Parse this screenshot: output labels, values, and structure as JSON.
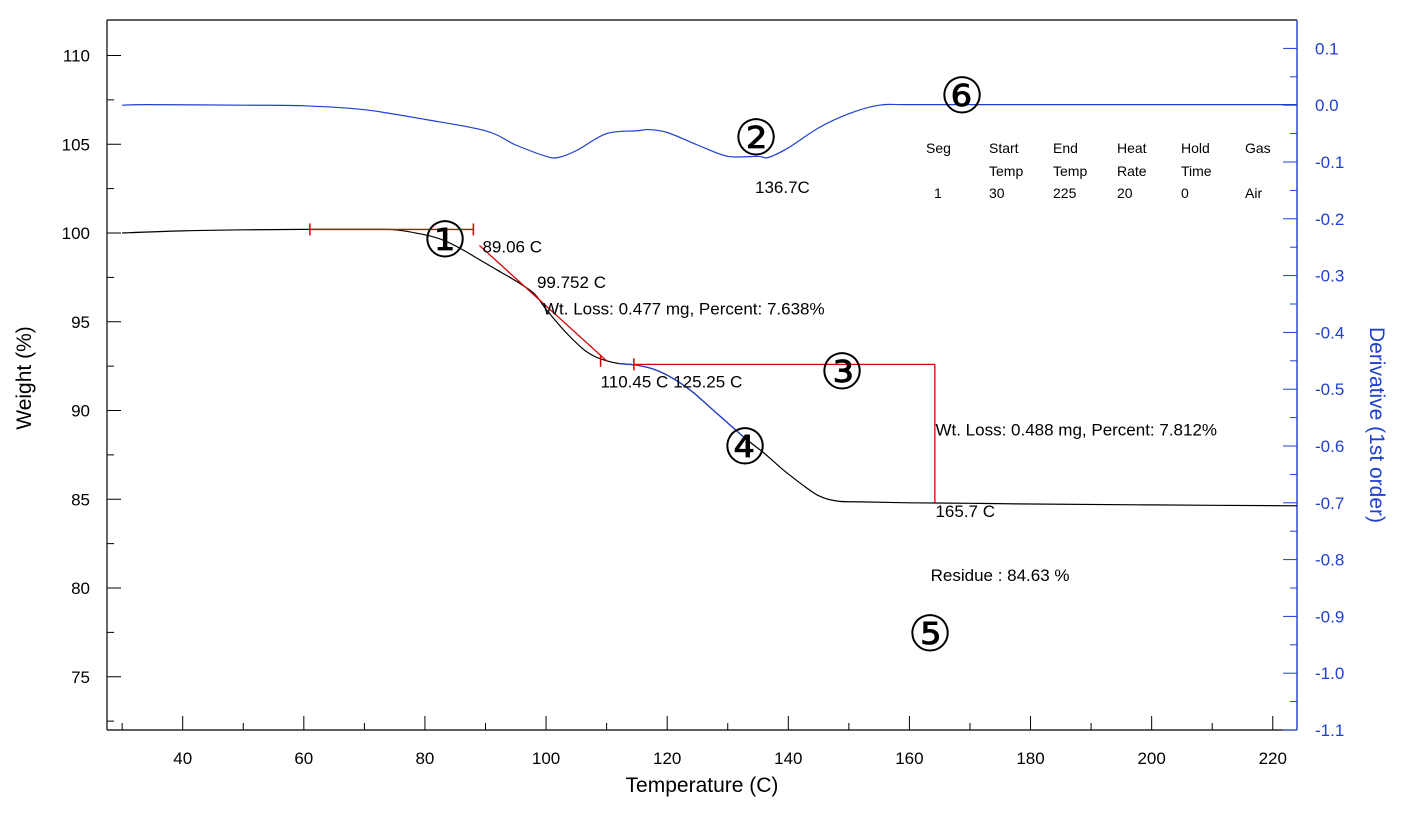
{
  "chart_data": {
    "type": "line",
    "xlabel": "Temperature (C)",
    "ylabel": "Weight (%)",
    "y2label": "Derivative (1st order)",
    "xlim": [
      27.5,
      224
    ],
    "ylim": [
      72,
      112
    ],
    "y2lim": [
      -1.1,
      0.15
    ],
    "x_ticks": [
      40,
      60,
      80,
      100,
      120,
      140,
      160,
      180,
      200,
      220
    ],
    "y_ticks": [
      75,
      80,
      85,
      90,
      95,
      100,
      105,
      110
    ],
    "y2_ticks": [
      0.1,
      0.0,
      -0.1,
      -0.2,
      -0.3,
      -0.4,
      -0.5,
      -0.6,
      -0.7,
      -0.8,
      -0.9,
      -1.0,
      -1.1
    ],
    "y2_tick_labels": [
      "0.1",
      "0.0",
      "-0.1",
      "-0.2",
      "-0.3",
      "-0.4",
      "-0.5",
      "-0.6",
      "-0.7",
      "-0.8",
      "-0.9",
      "-1.0",
      "-1.1"
    ],
    "grid": false,
    "colors": {
      "weight": "#000000",
      "derivative": "#1f3fd0",
      "analysis": "#d40000",
      "right_axis": "#1f3fd0"
    },
    "series": [
      {
        "name": "Weight",
        "axis": "left",
        "x": [
          30,
          40,
          50,
          60,
          70,
          75,
          80,
          83,
          86,
          89,
          92,
          95,
          98,
          100,
          103,
          106,
          108,
          110,
          112,
          115,
          118,
          121,
          124,
          127,
          130,
          133,
          136,
          139,
          142,
          145,
          148,
          152,
          160,
          170,
          180,
          200,
          224
        ],
        "values": [
          100.0,
          100.12,
          100.18,
          100.2,
          100.2,
          100.18,
          99.9,
          99.6,
          99.1,
          98.5,
          97.9,
          97.3,
          96.6,
          95.7,
          94.5,
          93.5,
          93.05,
          92.8,
          92.65,
          92.55,
          92.3,
          91.8,
          91.1,
          90.2,
          89.3,
          88.4,
          87.6,
          86.7,
          85.9,
          85.2,
          84.9,
          84.85,
          84.8,
          84.77,
          84.73,
          84.68,
          84.63
        ]
      },
      {
        "name": "Derivative",
        "axis": "right",
        "x": [
          30,
          34,
          50,
          60,
          70,
          80,
          90,
          95,
          100,
          102,
          105,
          110,
          115,
          117,
          120,
          125,
          130,
          135,
          136.7,
          140,
          145,
          150,
          155,
          160,
          180,
          224
        ],
        "values": [
          0.0,
          0.001,
          0.0,
          -0.001,
          -0.008,
          -0.025,
          -0.045,
          -0.07,
          -0.09,
          -0.092,
          -0.08,
          -0.05,
          -0.045,
          -0.043,
          -0.048,
          -0.07,
          -0.09,
          -0.09,
          -0.092,
          -0.075,
          -0.04,
          -0.015,
          0.0,
          0.001,
          0.001,
          0.001
        ]
      }
    ],
    "annotations": {
      "onset1": "89.06 C",
      "inflection1": "99.752 C",
      "loss1": "Wt. Loss: 0.477 mg, Percent: 7.638%",
      "end1": "110.45 C",
      "start2": "125.25 C",
      "loss2": "Wt. Loss: 0.488 mg, Percent: 7.812%",
      "end2": "165.7 C",
      "peak": "136.7C",
      "residue": "Residue : 84.63 %"
    },
    "markers": [
      "①",
      "②",
      "③",
      "④",
      "⑤",
      "⑥"
    ],
    "method_table": {
      "headers": [
        [
          "Seg",
          ""
        ],
        [
          "Start",
          "Temp"
        ],
        [
          "End",
          "Temp"
        ],
        [
          "Heat",
          "Rate"
        ],
        [
          "Hold",
          "Time"
        ],
        [
          "Gas",
          ""
        ]
      ],
      "rows": [
        [
          "1",
          "30",
          "225",
          "20",
          "0",
          "Air"
        ]
      ]
    }
  }
}
